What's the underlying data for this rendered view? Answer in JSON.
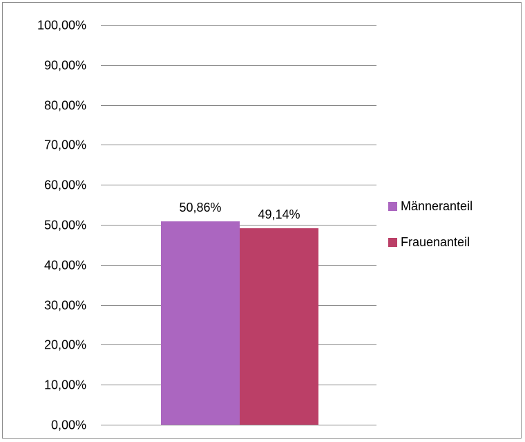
{
  "chart_data": {
    "type": "bar",
    "categories": [
      ""
    ],
    "series": [
      {
        "name": "Männeranteil",
        "values": [
          50.86
        ],
        "color": "#ab66c0"
      },
      {
        "name": "Frauenanteil",
        "values": [
          49.14
        ],
        "color": "#bb3f67"
      }
    ],
    "data_labels": [
      "50,86%",
      "49,14%"
    ],
    "y_ticks": [
      0,
      10,
      20,
      30,
      40,
      50,
      60,
      70,
      80,
      90,
      100
    ],
    "y_tick_labels": [
      "0,00%",
      "10,00%",
      "20,00%",
      "30,00%",
      "40,00%",
      "50,00%",
      "60,00%",
      "70,00%",
      "80,00%",
      "90,00%",
      "100,00%"
    ],
    "ylim": [
      0,
      100
    ],
    "grid": true,
    "legend_position": "right",
    "title": "",
    "xlabel": "",
    "ylabel": ""
  }
}
